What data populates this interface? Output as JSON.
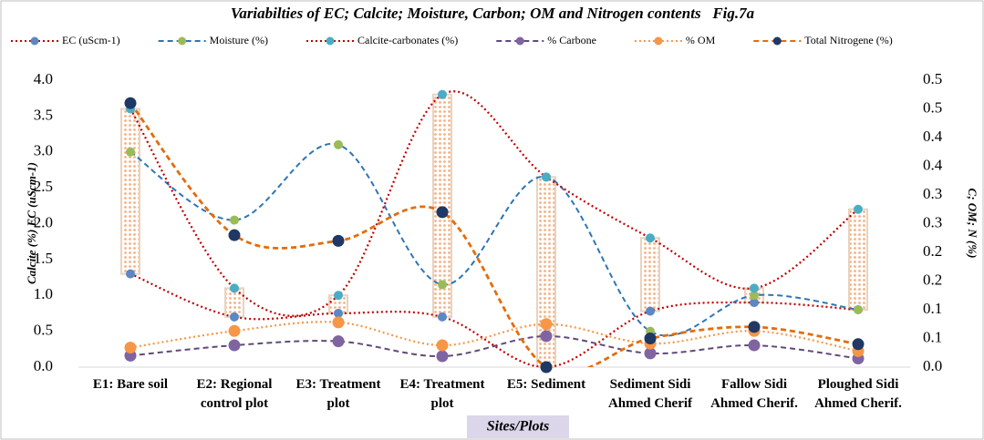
{
  "chart_data": {
    "type": "line",
    "title": "Variabilties of EC; Calcite; Moisture, Carbon; OM and Nitrogen contents   Fig.7a",
    "ylabel": "Calcite (%) EC (uScm-1)",
    "y2label": "C; OM; N (%)",
    "xlabel": "Sites/Plots",
    "categories": [
      "E1: Bare soil",
      "E2: Regional control plot",
      "E3: Treatment plot",
      "E4: Treatment plot",
      "E5: Sediment",
      "Sediment Sidi Ahmed Cherif",
      "Fallow Sidi Ahmed Cherif.",
      "Ploughed Sidi Ahmed Cherif."
    ],
    "ylim": [
      0,
      4
    ],
    "yticks": [
      {
        "value": 0,
        "label": "0.0"
      },
      {
        "value": 0.5,
        "label": "0.5"
      },
      {
        "value": 1,
        "label": "1.0"
      },
      {
        "value": 1.5,
        "label": "1.5"
      },
      {
        "value": 2,
        "label": "2.0"
      },
      {
        "value": 2.5,
        "label": "2.5"
      },
      {
        "value": 3,
        "label": "3.0"
      },
      {
        "value": 3.5,
        "label": "3.5"
      },
      {
        "value": 4,
        "label": "4.0"
      }
    ],
    "y2lim": [
      0,
      0.5
    ],
    "y2ticks": [
      {
        "value": 0,
        "label": "0.0"
      },
      {
        "value": 0.05,
        "label": "0.1"
      },
      0.1,
      {
        "value": 0.15,
        "label": "0.2"
      },
      0.2,
      {
        "value": 0.25,
        "label": "0.3"
      },
      0.3,
      {
        "value": 0.35,
        "label": "0.4"
      },
      0.4,
      {
        "value": 0.45,
        "label": "0.5"
      },
      0.5
    ],
    "high_low_bars": true,
    "series": [
      {
        "name": "EC (uScm-1)",
        "color": "#c00000",
        "marker_color": "#5b87c5",
        "dash": "dotted",
        "values": [
          1.3,
          0.7,
          0.75,
          0.7,
          0.0,
          0.78,
          0.9,
          0.8
        ]
      },
      {
        "name": "Moisture (%)",
        "color": "#2e75b6",
        "marker_color": "#9bbb59",
        "dash": "dashed",
        "values": [
          3.0,
          2.05,
          3.1,
          1.15,
          2.65,
          0.5,
          1.0,
          0.8
        ]
      },
      {
        "name": "Calcite-carbonates (%)",
        "color": "#c00000",
        "marker_color": "#4bacc6",
        "dash": "dotted",
        "values": [
          3.6,
          1.1,
          1.0,
          3.8,
          2.65,
          1.8,
          1.1,
          2.2
        ]
      },
      {
        "name": "% Carbone",
        "color": "#604a7b",
        "marker_color": "#8064a2",
        "dash": "dashed",
        "axis": "y2",
        "values": [
          0.02,
          0.038,
          0.045,
          0.019,
          0.054,
          0.024,
          0.038,
          0.015
        ]
      },
      {
        "name": "% OM",
        "color": "#f79646",
        "marker_color": "#f79646",
        "dash": "dotted",
        "axis": "y2",
        "values": [
          0.034,
          0.063,
          0.078,
          0.038,
          0.075,
          0.041,
          0.063,
          0.028
        ]
      },
      {
        "name": "Total Nitrogene (%)",
        "color": "#e46c0a",
        "marker_color": "#1f3864",
        "dash": "dashed",
        "axis": "y2",
        "values": [
          0.46,
          0.23,
          0.22,
          0.27,
          0.0,
          0.05,
          0.07,
          0.04
        ]
      }
    ]
  }
}
